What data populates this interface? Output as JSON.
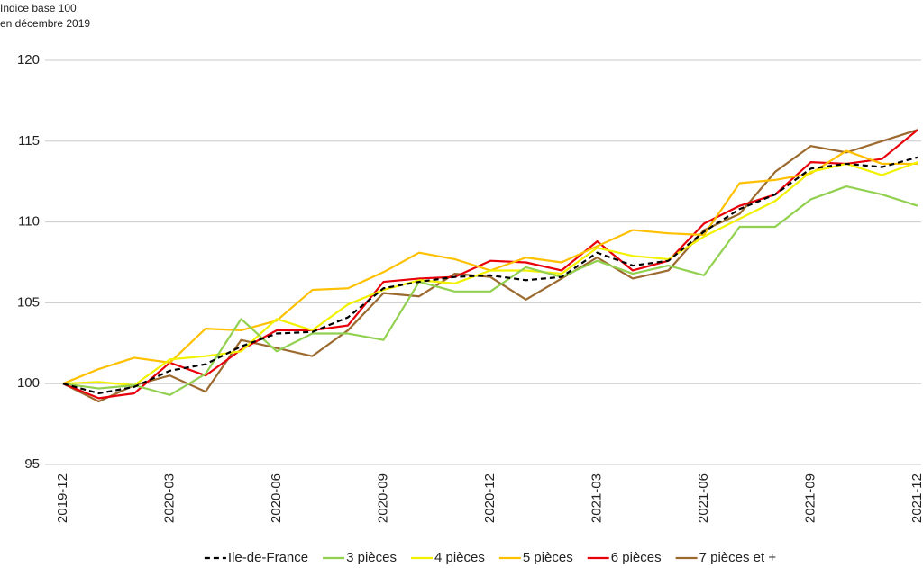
{
  "chart_data": {
    "type": "line",
    "ylabel": [
      "Indice base 100",
      "en décembre 2019"
    ],
    "categories": [
      "2019-12",
      null,
      null,
      "2020-03",
      null,
      null,
      "2020-06",
      null,
      null,
      "2020-09",
      null,
      null,
      "2020-12",
      null,
      null,
      "2021-03",
      null,
      null,
      "2021-06",
      null,
      null,
      "2021-09",
      null,
      null,
      "2021-12"
    ],
    "ylim": [
      95,
      120
    ],
    "yticks": [
      95,
      100,
      105,
      110,
      115,
      120
    ],
    "grid": true,
    "legend": "bottom",
    "series": [
      {
        "name": "Ile-de-France",
        "color": "#000000",
        "dashed": true,
        "values": [
          100,
          99.4,
          99.8,
          100.8,
          101.2,
          102.3,
          103.1,
          103.2,
          104.1,
          105.9,
          106.3,
          106.6,
          106.7,
          106.4,
          106.6,
          108.1,
          107.3,
          107.6,
          109.4,
          110.8,
          111.7,
          113.3,
          113.6,
          113.4,
          114.0
        ]
      },
      {
        "name": "3 pièces",
        "color": "#92d050",
        "values": [
          100,
          99.7,
          99.9,
          99.3,
          100.6,
          104.0,
          102.0,
          103.1,
          103.1,
          102.7,
          106.3,
          105.7,
          105.7,
          107.2,
          106.6,
          107.6,
          106.8,
          107.3,
          106.7,
          109.7,
          109.7,
          111.4,
          112.2,
          111.7,
          111.0
        ]
      },
      {
        "name": "4 pièces",
        "color": "#f2f200",
        "values": [
          100,
          100.1,
          99.9,
          101.5,
          101.7,
          102.0,
          104.0,
          103.3,
          104.9,
          105.8,
          106.4,
          106.2,
          107.0,
          107.0,
          106.8,
          108.4,
          107.9,
          107.7,
          109.1,
          110.2,
          111.3,
          113.1,
          113.6,
          112.9,
          113.7
        ]
      },
      {
        "name": "5 pièces",
        "color": "#ffc000",
        "values": [
          100,
          100.9,
          101.6,
          101.3,
          103.4,
          103.3,
          103.9,
          105.8,
          105.9,
          106.9,
          108.1,
          107.7,
          107.0,
          107.8,
          107.5,
          108.5,
          109.5,
          109.3,
          109.2,
          112.4,
          112.6,
          113.0,
          114.4,
          113.6,
          113.6
        ]
      },
      {
        "name": "6 pièces",
        "color": "#e8000b",
        "values": [
          100,
          99.1,
          99.4,
          101.3,
          100.5,
          102.1,
          103.3,
          103.3,
          103.6,
          106.3,
          106.5,
          106.6,
          107.6,
          107.5,
          107.0,
          108.8,
          107.0,
          107.6,
          109.9,
          111.0,
          111.7,
          113.7,
          113.6,
          113.9,
          115.7
        ]
      },
      {
        "name": "7 pièces et +",
        "color": "#9c6a2e",
        "values": [
          100,
          98.9,
          99.9,
          100.5,
          99.5,
          102.7,
          102.2,
          101.7,
          103.3,
          105.6,
          105.4,
          106.8,
          106.6,
          105.2,
          106.5,
          107.8,
          106.5,
          107.0,
          109.5,
          110.5,
          113.1,
          114.7,
          114.3,
          115.0,
          115.7
        ]
      }
    ]
  }
}
